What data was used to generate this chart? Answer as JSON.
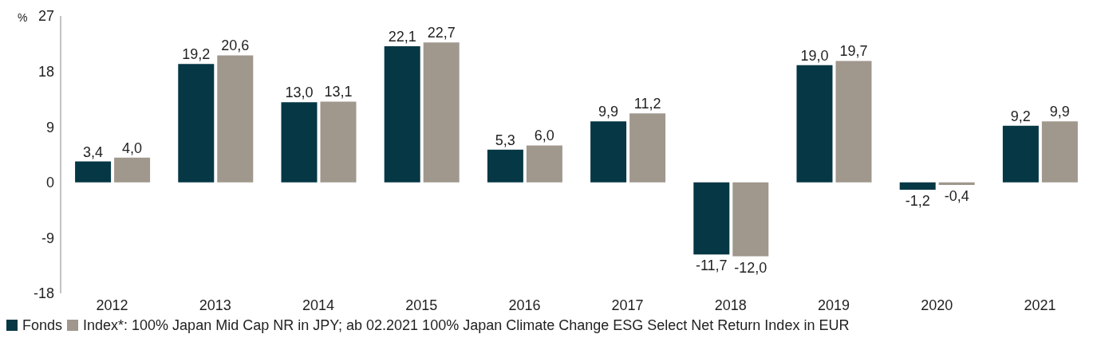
{
  "chart_data": {
    "type": "bar",
    "ylabel": "%",
    "categories": [
      "2012",
      "2013",
      "2014",
      "2015",
      "2016",
      "2017",
      "2018",
      "2019",
      "2020",
      "2021"
    ],
    "series": [
      {
        "name": "Fonds",
        "color": "#053745",
        "values": [
          3.4,
          19.2,
          13.0,
          22.1,
          5.3,
          9.9,
          -11.7,
          19.0,
          -1.2,
          9.2
        ],
        "value_labels": [
          "3,4",
          "19,2",
          "13,0",
          "22,1",
          "5,3",
          "9,9",
          "-11,7",
          "19,0",
          "-1,2",
          "9,2"
        ]
      },
      {
        "name": "Index*: 100% Japan Mid Cap NR in JPY; ab 02.2021 100% Japan Climate Change ESG Select Net Return Index in EUR",
        "color": "#a0978d",
        "values": [
          4.0,
          20.6,
          13.1,
          22.7,
          6.0,
          11.2,
          -12.0,
          19.7,
          -0.4,
          9.9
        ],
        "value_labels": [
          "4,0",
          "20,6",
          "13,1",
          "22,7",
          "6,0",
          "11,2",
          "-12,0",
          "19,7",
          "-0,4",
          "9,9"
        ]
      }
    ],
    "ylim": [
      -18,
      27
    ],
    "yticks": [
      -18,
      -9,
      0,
      9,
      18,
      27
    ],
    "legend": "bottom"
  }
}
